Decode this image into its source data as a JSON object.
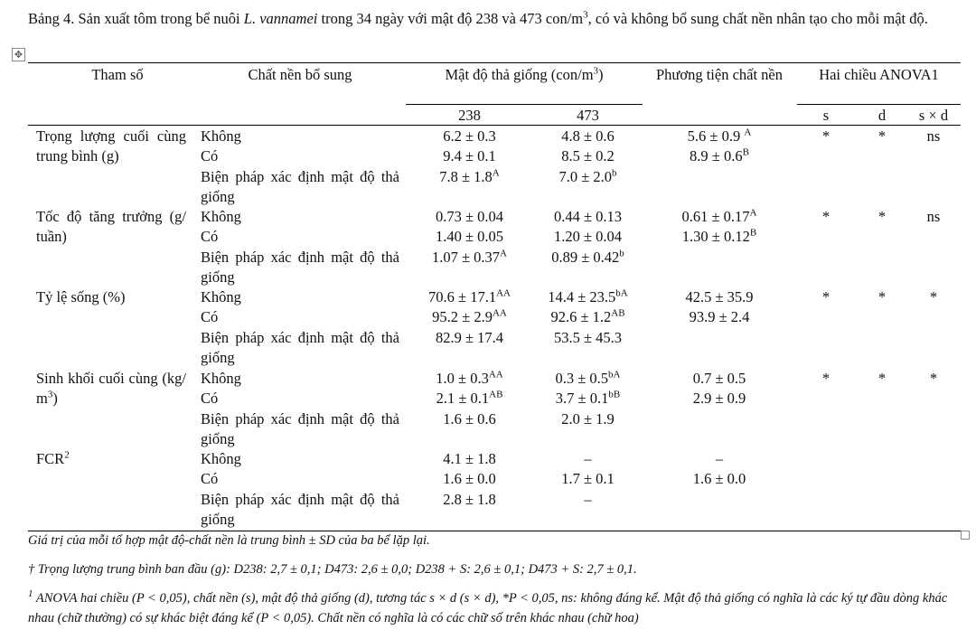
{
  "caption": {
    "prefix": "Bảng 4. Sản xuất tôm trong bể nuôi ",
    "species": "L. vannamei",
    "middle": " trong 34 ngày với mật độ 238 và 473 con/m",
    "sup": "3",
    "rest": ", có và không bổ sung chất nền nhân tạo cho mỗi mật độ."
  },
  "handles": {
    "move_glyph": "✥"
  },
  "header": {
    "param": "Tham số",
    "substrate": "Chất nền bổ sung",
    "density_prefix": "Mật độ thả giống (con/m",
    "density_sup": "3",
    "density_suffix": ")",
    "density_238": "238",
    "density_473": "473",
    "substrate_mean": "Phương tiện chất nền",
    "anova": "Hai chiều ANOVA1",
    "s": "s",
    "d": "d",
    "sxd": "s × d"
  },
  "rows": [
    {
      "param": "Trọng lượng cuối cùng trung bình (g)",
      "lines": [
        {
          "sub": "Không",
          "v238": "6.2 ± 0.3",
          "s238": "",
          "v473": "4.8 ± 0.6",
          "s473": "",
          "mean": "5.6 ± 0.9 ",
          "smean": "A",
          "s": "*",
          "d": "*",
          "sxd": "ns"
        },
        {
          "sub": "Có",
          "v238": "9.4 ± 0.1",
          "s238": "",
          "v473": "8.5 ± 0.2",
          "s473": "",
          "mean": "8.9 ± 0.6",
          "smean": "B",
          "s": "",
          "d": "",
          "sxd": ""
        },
        {
          "sub": "Biện pháp xác định mật độ thả giống",
          "v238": "7.8 ± 1.8",
          "s238": "A",
          "v473": "7.0 ± 2.0",
          "s473": "b",
          "mean": "",
          "smean": "",
          "s": "",
          "d": "",
          "sxd": ""
        }
      ]
    },
    {
      "param": "Tốc độ tăng trưởng (g/ tuần)",
      "lines": [
        {
          "sub": "Không",
          "v238": "0.73 ± 0.04",
          "s238": "",
          "v473": "0.44 ± 0.13",
          "s473": "",
          "mean": "0.61 ± 0.17",
          "smean": "A",
          "s": "*",
          "d": "*",
          "sxd": "ns"
        },
        {
          "sub": "Có",
          "v238": "1.40 ± 0.05",
          "s238": "",
          "v473": "1.20 ± 0.04",
          "s473": "",
          "mean": "1.30 ± 0.12",
          "smean": "B",
          "s": "",
          "d": "",
          "sxd": ""
        },
        {
          "sub": "Biện pháp xác định mật độ thả giống",
          "v238": "1.07 ± 0.37",
          "s238": "A",
          "v473": "0.89 ± 0.42",
          "s473": "b",
          "mean": "",
          "smean": "",
          "s": "",
          "d": "",
          "sxd": ""
        }
      ]
    },
    {
      "param": "Tỷ lệ sống (%)",
      "lines": [
        {
          "sub": "Không",
          "v238": "70.6 ± 17.1",
          "s238": "AA",
          "v473": "14.4 ± 23.5",
          "s473": "bA",
          "mean": "42.5 ± 35.9",
          "smean": "",
          "s": "*",
          "d": "*",
          "sxd": "*"
        },
        {
          "sub": "Có",
          "v238": "95.2 ± 2.9",
          "s238": "AA",
          "v473": "92.6 ± 1.2",
          "s473": "AB",
          "mean": "93.9 ± 2.4",
          "smean": "",
          "s": "",
          "d": "",
          "sxd": ""
        },
        {
          "sub": "Biện pháp xác định mật độ thả giống",
          "v238": "82.9 ± 17.4",
          "s238": "",
          "v473": "53.5 ± 45.3",
          "s473": "",
          "mean": "",
          "smean": "",
          "s": "",
          "d": "",
          "sxd": ""
        }
      ]
    },
    {
      "param": "Sinh khối cuối cùng (kg/ m",
      "param_sup": "3",
      "param_suffix": ")",
      "lines": [
        {
          "sub": "Không",
          "v238": "1.0 ± 0.3",
          "s238": "AA",
          "v473": "0.3 ± 0.5",
          "s473": "bA",
          "mean": "0.7 ± 0.5",
          "smean": "",
          "s": "*",
          "d": "*",
          "sxd": "*"
        },
        {
          "sub": "Có",
          "v238": "2.1 ± 0.1",
          "s238": "AB",
          "v473": "3.7 ± 0.1",
          "s473": "bB",
          "mean": "2.9 ± 0.9",
          "smean": "",
          "s": "",
          "d": "",
          "sxd": ""
        },
        {
          "sub": "Biện pháp xác định mật độ thả giống",
          "v238": "1.6 ± 0.6",
          "s238": "",
          "v473": "2.0 ± 1.9",
          "s473": "",
          "mean": "",
          "smean": "",
          "s": "",
          "d": "",
          "sxd": ""
        }
      ]
    },
    {
      "param": "FCR",
      "param_sup": "2",
      "param_suffix": "",
      "lines": [
        {
          "sub": "Không",
          "v238": "4.1 ± 1.8",
          "s238": "",
          "v473": "–",
          "s473": "",
          "mean": "–",
          "smean": "",
          "s": "",
          "d": "",
          "sxd": ""
        },
        {
          "sub": "Có",
          "v238": "1.6 ± 0.0",
          "s238": "",
          "v473": "1.7 ± 0.1",
          "s473": "",
          "mean": "1.6 ± 0.0",
          "smean": "",
          "s": "",
          "d": "",
          "sxd": ""
        },
        {
          "sub": "Biện pháp xác định mật độ thả giống",
          "v238": "2.8 ± 1.8",
          "s238": "",
          "v473": "–",
          "s473": "",
          "mean": "",
          "smean": "",
          "s": "",
          "d": "",
          "sxd": ""
        }
      ]
    }
  ],
  "footnotes": {
    "note1": "Giá trị của mỗi tổ hợp mật độ-chất nền là trung bình ± SD của ba bể lặp lại.",
    "note2": "† Trọng lượng trung bình ban đầu (g): D238: 2,7 ± 0,1; D473: 2,6 ± 0,0; D238 + S: 2,6 ± 0,1; D473 + S: 2,7 ± 0,1.",
    "note3_sup": "1",
    "note3": " ANOVA hai chiều (P < 0,05), chất nền (s), mật độ thả giống (d), tương tác s × d (s × d), *P < 0,05, ns: không đáng kể. Mật độ thả giống có nghĩa là các ký tự đầu dòng khác nhau (chữ thường) có sự khác biệt đáng kể (P < 0,05). Chất nền có nghĩa là có các chữ số trên khác nhau (chữ hoa)"
  }
}
